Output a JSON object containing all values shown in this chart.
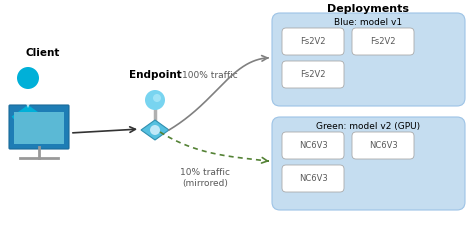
{
  "title": "Deployments",
  "client_label": "Client",
  "endpoint_label": "Endpoint",
  "traffic_solid_label": "100% traffic",
  "traffic_dashed_label": "10% traffic\n(mirrored)",
  "blue_box_label": "Blue: model v1",
  "green_box_label": "Green: model v2 (GPU)",
  "blue_cells": [
    "Fs2V2",
    "Fs2V2",
    "Fs2V2"
  ],
  "green_cells": [
    "NC6V3",
    "NC6V3",
    "NC6V3"
  ],
  "bg_color": "#ffffff",
  "blue_box_color": "#c5ddf0",
  "green_box_color": "#c5ddf0",
  "cell_color": "#ffffff",
  "title_color": "#000000",
  "label_color": "#595959",
  "solid_arrow_color": "#808080",
  "dashed_arrow_color": "#548235",
  "blue_border_color": "#9dc3e6",
  "green_border_color": "#9dc3e6",
  "client_monitor_color": "#2d8fbf",
  "client_screen_color": "#5bb3d8",
  "client_person_color": "#00b0d8",
  "endpoint_ball_color": "#00c0e8",
  "endpoint_body_color": "#55aacc",
  "endpoint_stem_color": "#aaaaaa"
}
